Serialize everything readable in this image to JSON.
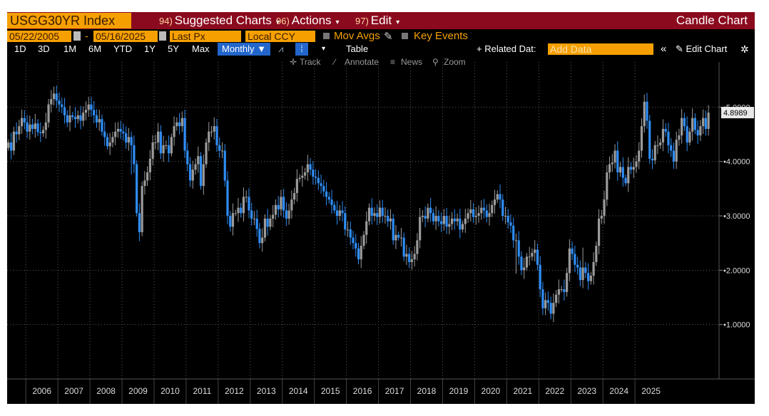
{
  "header": {
    "ticker": "USGG30YR Index",
    "menu": [
      {
        "num": "94)",
        "label": "Suggested Charts"
      },
      {
        "num": "96)",
        "label": "Actions"
      },
      {
        "num": "97)",
        "label": "Edit"
      }
    ],
    "title": "Candle Chart"
  },
  "settings": {
    "start_date": "05/22/2005",
    "end_date": "05/16/2025",
    "dash": "-",
    "field": "Last Px",
    "currency": "Local CCY",
    "mov_avgs": "Mov Avgs",
    "key_events": "Key Events"
  },
  "toolbar": {
    "ranges": [
      "1D",
      "3D",
      "1M",
      "6M",
      "YTD",
      "1Y",
      "5Y",
      "Max"
    ],
    "period": "Monthly ▼",
    "table": "Table",
    "related": "+ Related Dat:",
    "add_data_placeholder": "Add Data",
    "collapse": "«",
    "edit_chart": "✎ Edit Chart",
    "gear": "✲"
  },
  "subtools": {
    "track": "Track",
    "annotate": "Annotate",
    "news": "News",
    "zoom": "Zoom"
  },
  "colors": {
    "up": "#9b9b9b",
    "down": "#2f8df5",
    "header_bg": "#8b0a1e",
    "accent": "#f5a000",
    "grid": "#5a5a5a"
  },
  "chart_data": {
    "type": "candlestick",
    "period": "monthly",
    "last_value_label": "4.8989",
    "y_ticks": [
      "1.0000",
      "2.0000",
      "3.0000",
      "4.0000",
      "5.0000"
    ],
    "ylim": [
      0,
      5.7
    ],
    "x_ticks": [
      "2006",
      "2007",
      "2008",
      "2009",
      "2010",
      "2011",
      "2012",
      "2013",
      "2014",
      "2015",
      "2016",
      "2017",
      "2018",
      "2019",
      "2020",
      "2021",
      "2022",
      "2023",
      "2024",
      "2025"
    ],
    "x_range": [
      "2005-06",
      "2025-05"
    ],
    "grid": true,
    "closes": [
      4.35,
      4.2,
      4.55,
      4.5,
      4.65,
      4.8,
      4.72,
      4.55,
      4.68,
      4.6,
      4.7,
      4.54,
      4.52,
      4.58,
      4.72,
      5.05,
      5.15,
      5.25,
      5.12,
      5.05,
      5.0,
      4.85,
      4.72,
      4.85,
      4.82,
      4.78,
      4.85,
      4.75,
      4.9,
      4.95,
      5.05,
      4.95,
      4.85,
      4.72,
      4.78,
      4.55,
      4.45,
      4.28,
      4.35,
      4.45,
      4.55,
      4.6,
      4.55,
      4.52,
      4.35,
      4.45,
      4.3,
      3.95,
      3.05,
      2.7,
      3.55,
      3.65,
      3.8,
      4.05,
      4.35,
      4.35,
      4.55,
      4.15,
      4.3,
      4.3,
      4.15,
      4.45,
      4.65,
      4.72,
      4.65,
      4.8,
      4.2,
      3.95,
      3.65,
      3.85,
      3.95,
      4.1,
      3.55,
      3.95,
      4.35,
      4.55,
      4.55,
      4.65,
      4.3,
      4.2,
      4.2,
      3.65,
      3.0,
      2.8,
      3.05,
      3.05,
      3.15,
      3.05,
      3.35,
      3.35,
      3.1,
      2.95,
      2.95,
      2.76,
      2.5,
      2.6,
      2.95,
      2.8,
      2.95,
      3.02,
      3.2,
      3.12,
      3.35,
      3.1,
      2.95,
      3.1,
      3.3,
      3.42,
      3.68,
      3.7,
      3.74,
      3.8,
      3.95,
      3.85,
      3.72,
      3.7,
      3.6,
      3.55,
      3.45,
      3.35,
      3.3,
      3.2,
      3.1,
      3.0,
      3.1,
      3.05,
      2.75,
      2.75,
      2.6,
      2.5,
      2.4,
      2.2,
      2.45,
      2.65,
      2.9,
      3.15,
      3.0,
      3.05,
      2.98,
      3.15,
      3.0,
      3.0,
      2.9,
      2.95,
      2.55,
      2.65,
      2.6,
      2.6,
      2.25,
      2.3,
      2.15,
      2.2,
      2.3,
      2.55,
      2.98,
      3.0,
      2.95,
      3.15,
      3.05,
      2.9,
      3.0,
      2.9,
      2.85,
      3.0,
      2.8,
      2.85,
      2.95,
      2.9,
      2.95,
      2.75,
      2.85,
      2.95,
      3.05,
      3.12,
      2.98,
      3.0,
      3.05,
      3.15,
      3.1,
      2.98,
      3.05,
      3.2,
      3.3,
      3.4,
      3.3,
      3.0,
      3.0,
      2.88,
      2.82,
      2.55,
      2.55,
      2.25,
      2.0,
      2.05,
      2.25,
      2.25,
      2.32,
      2.38,
      2.1,
      1.65,
      1.3,
      1.45,
      1.4,
      1.2,
      1.4,
      1.55,
      1.65,
      1.65,
      1.6,
      1.95,
      2.4,
      2.3,
      2.1,
      2.05,
      1.82,
      2.05,
      1.95,
      1.8,
      1.9,
      2.15,
      2.45,
      2.95,
      3.0,
      3.3,
      3.8,
      3.95,
      3.98,
      4.2,
      3.8,
      3.9,
      3.7,
      3.6,
      3.9,
      3.85,
      3.9,
      4.0,
      4.2,
      4.65,
      5.1,
      4.75,
      4.05,
      4.02,
      4.3,
      4.3,
      4.35,
      4.6,
      4.55,
      4.3,
      4.2,
      4.0,
      4.4,
      4.48,
      4.8,
      4.65,
      4.35,
      4.55,
      4.8,
      4.58,
      4.48,
      4.65,
      4.8,
      4.6,
      4.9
    ]
  }
}
